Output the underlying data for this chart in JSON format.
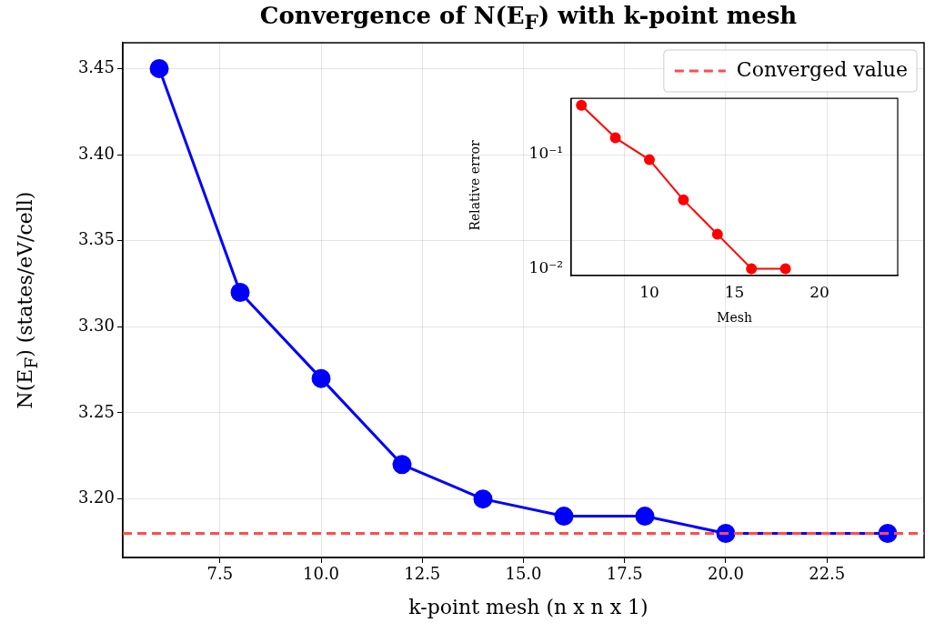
{
  "chart_data": [
    {
      "type": "line",
      "title": "Convergence of N(E$_{F}$) with k-point mesh",
      "xlabel": "k-point mesh (n x n x 1)",
      "ylabel": "N(E$_{F}$) (states/eV/cell)",
      "x": [
        6,
        8,
        10,
        12,
        14,
        16,
        18,
        20,
        24
      ],
      "series": [
        {
          "color": "#0000ff",
          "values": [
            3.45,
            3.32,
            3.27,
            3.22,
            3.2,
            3.19,
            3.19,
            3.18,
            3.18
          ]
        }
      ],
      "xlim": [
        5.1,
        24.9
      ],
      "xticks": [
        {
          "value": 7.5,
          "label": "7.5"
        },
        {
          "value": 10,
          "label": "10.0"
        },
        {
          "value": 12.5,
          "label": "12.5"
        },
        {
          "value": 15,
          "label": "15.0"
        },
        {
          "value": 17.5,
          "label": "17.5"
        },
        {
          "value": 20,
          "label": "20.0"
        },
        {
          "value": 22.5,
          "label": "22.5"
        }
      ],
      "ylim": [
        3.166,
        3.465
      ],
      "yticks": [
        {
          "value": 3.2,
          "label": "3.20"
        },
        {
          "value": 3.25,
          "label": "3.25"
        },
        {
          "value": 3.3,
          "label": "3.30"
        },
        {
          "value": 3.35,
          "label": "3.35"
        },
        {
          "value": 3.4,
          "label": "3.40"
        },
        {
          "value": 3.45,
          "label": "3.45"
        }
      ],
      "ref_lines": [
        {
          "axis": "y",
          "value": 3.18,
          "label": "Converged value",
          "color": "#ff4c4c",
          "line_style": "dashed"
        }
      ],
      "grid": true,
      "legend": "top right",
      "marker": "circle",
      "line_style": "solid"
    },
    {
      "type": "line",
      "xlabel": "Mesh",
      "ylabel": "Relative error",
      "x": [
        6,
        8,
        10,
        12,
        14,
        16,
        18
      ],
      "series": [
        {
          "color": "#ff0000",
          "values": [
            0.27,
            0.14,
            0.09,
            0.04,
            0.02,
            0.01,
            0.01
          ]
        }
      ],
      "xlim": [
        5.4,
        24.6
      ],
      "xticks": [
        10,
        15,
        20
      ],
      "ylim": [
        0.0087,
        0.31
      ],
      "yticks": [
        {
          "value": 0.01,
          "label": "10⁻²"
        },
        {
          "value": 0.1,
          "label": "10⁻¹"
        }
      ],
      "log": "y",
      "grid": false,
      "marker": "circle",
      "line_style": "solid"
    }
  ]
}
